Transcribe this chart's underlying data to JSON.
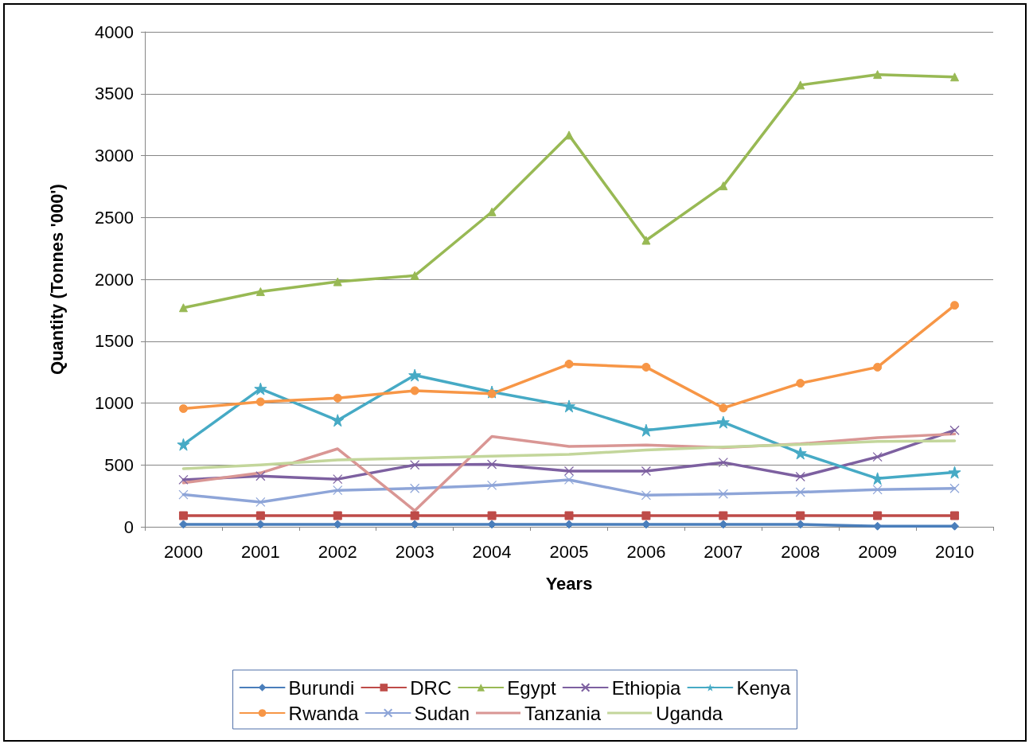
{
  "chart_data": {
    "type": "line",
    "xlabel": "Years",
    "ylabel": "Quantity (Tonnes '000')",
    "categories": [
      "2000",
      "2001",
      "2002",
      "2003",
      "2004",
      "2005",
      "2006",
      "2007",
      "2008",
      "2009",
      "2010"
    ],
    "ylim": [
      0,
      4000
    ],
    "yticks": [
      0,
      500,
      1000,
      1500,
      2000,
      2500,
      3000,
      3500,
      4000
    ],
    "grid": "y",
    "legend": "bottom",
    "series": [
      {
        "name": "Burundi",
        "color": "#4a7ebb",
        "marker": "diamond",
        "values": [
          20,
          20,
          20,
          20,
          20,
          20,
          20,
          20,
          20,
          5,
          5
        ]
      },
      {
        "name": "DRC",
        "color": "#be4b48",
        "marker": "square",
        "values": [
          90,
          90,
          90,
          90,
          90,
          90,
          90,
          90,
          90,
          90,
          90
        ]
      },
      {
        "name": "Egypt",
        "color": "#98b954",
        "marker": "triangle",
        "values": [
          1770,
          1900,
          1980,
          2030,
          2545,
          3165,
          2315,
          2755,
          3570,
          3655,
          3635
        ]
      },
      {
        "name": "Ethiopia",
        "color": "#7d60a0",
        "marker": "cross",
        "values": [
          380,
          410,
          385,
          500,
          505,
          450,
          450,
          520,
          405,
          565,
          780
        ]
      },
      {
        "name": "Kenya",
        "color": "#46aac5",
        "marker": "star",
        "values": [
          665,
          1115,
          860,
          1225,
          1090,
          975,
          780,
          845,
          595,
          390,
          440
        ]
      },
      {
        "name": "Rwanda",
        "color": "#f79646",
        "marker": "circle",
        "values": [
          955,
          1010,
          1040,
          1100,
          1075,
          1315,
          1290,
          960,
          1160,
          1290,
          1790
        ]
      },
      {
        "name": "Sudan",
        "color": "#8ea5d8",
        "marker": "cross",
        "values": [
          260,
          200,
          295,
          310,
          335,
          380,
          255,
          265,
          280,
          300,
          310
        ]
      },
      {
        "name": "Tanzania",
        "color": "#d99694",
        "marker": "none",
        "values": [
          355,
          435,
          630,
          130,
          730,
          650,
          660,
          640,
          670,
          720,
          750
        ]
      },
      {
        "name": "Uganda",
        "color": "#c3d69b",
        "marker": "none",
        "values": [
          470,
          500,
          540,
          555,
          570,
          585,
          620,
          645,
          665,
          690,
          695
        ]
      }
    ]
  }
}
